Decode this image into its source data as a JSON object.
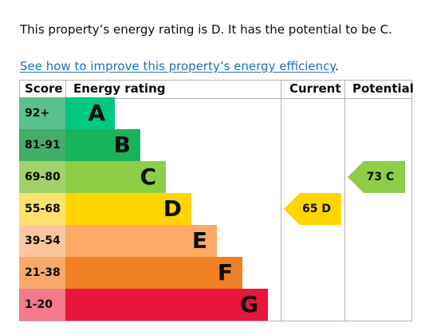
{
  "summary": {
    "sentence": "This property’s energy rating is D. It has the potential to be C.",
    "link_text": "See how to improve this property’s energy efficiency",
    "link_suffix": "."
  },
  "table": {
    "headers": {
      "score": "Score",
      "rating": "Energy rating",
      "current": "Current",
      "potential": "Potential"
    },
    "bands": [
      {
        "score": "92+",
        "letter": "A",
        "score_color": "#5ac18e",
        "bar_color": "#00c781"
      },
      {
        "score": "81-91",
        "letter": "B",
        "score_color": "#43ad6a",
        "bar_color": "#19b459"
      },
      {
        "score": "69-80",
        "letter": "C",
        "score_color": "#a3d16a",
        "bar_color": "#8dce46"
      },
      {
        "score": "55-68",
        "letter": "D",
        "score_color": "#fde26d",
        "bar_color": "#ffd500"
      },
      {
        "score": "39-54",
        "letter": "E",
        "score_color": "#fbc59f",
        "bar_color": "#fcaa65"
      },
      {
        "score": "21-38",
        "letter": "F",
        "score_color": "#f8a868",
        "bar_color": "#ef8023"
      },
      {
        "score": "1-20",
        "letter": "G",
        "score_color": "#f27a8a",
        "bar_color": "#e9153b"
      }
    ],
    "current": {
      "value": "65",
      "band": "D",
      "color": "#ffd500"
    },
    "potential": {
      "value": "73",
      "band": "C",
      "color": "#8dce46"
    }
  }
}
